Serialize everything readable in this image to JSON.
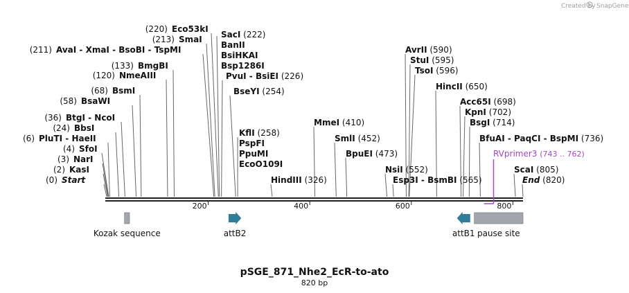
{
  "credit": {
    "created_by": "Created by",
    "brand": "SnapGene"
  },
  "title": "pSGE_871_Nhe2_EcR-to-ato",
  "length_label": "820 bp",
  "axis_ticks": [
    "200",
    "400",
    "600",
    "800"
  ],
  "sites": [
    {
      "pos": 0,
      "text": "(0)",
      "name": "Start",
      "italic": true
    },
    {
      "pos": 2,
      "text": "(2)",
      "name": "KasI"
    },
    {
      "pos": 3,
      "text": "(3)",
      "name": "NarI"
    },
    {
      "pos": 4,
      "text": "(4)",
      "name": "SfoI"
    },
    {
      "pos": 6,
      "text": "(6)",
      "name": "PluTI  -  HaeII"
    },
    {
      "pos": 24,
      "text": "(24)",
      "name": "BbsI"
    },
    {
      "pos": 36,
      "text": "(36)",
      "name": "BtgI  -  NcoI"
    },
    {
      "pos": 58,
      "text": "(58)",
      "name": "BsaWI"
    },
    {
      "pos": 68,
      "text": "(68)",
      "name": "BsmI"
    },
    {
      "pos": 120,
      "text": "(120)",
      "name": "NmeAIII"
    },
    {
      "pos": 133,
      "text": "(133)",
      "name": "BmgBI"
    },
    {
      "pos": 211,
      "text": "(211)",
      "name": "AvaI  -  XmaI  -  BsoBI  -  TspMI"
    },
    {
      "pos": 213,
      "text": "(213)",
      "name": "SmaI"
    },
    {
      "pos": 220,
      "text": "(220)",
      "name": "Eco53kI"
    },
    {
      "pos": 222,
      "text": "(222)",
      "name": "SacI",
      "extra": [
        "BanII",
        "BsiHKAI",
        "Bsp1286I"
      ]
    },
    {
      "pos": 226,
      "text": "(226)",
      "name": "PvuI  -  BsiEI"
    },
    {
      "pos": 254,
      "text": "(254)",
      "name": "BseYI"
    },
    {
      "pos": 258,
      "text": "(258)",
      "name": "KflI",
      "extra": [
        "PspFI",
        "PpuMI",
        "EcoO109I"
      ]
    },
    {
      "pos": 326,
      "text": "(326)",
      "name": "HindIII"
    },
    {
      "pos": 410,
      "text": "(410)",
      "name": "MmeI"
    },
    {
      "pos": 452,
      "text": "(452)",
      "name": "SmlI"
    },
    {
      "pos": 473,
      "text": "(473)",
      "name": "BpuEI"
    },
    {
      "pos": 552,
      "text": "(552)",
      "name": "NsiI"
    },
    {
      "pos": 565,
      "text": "(565)",
      "name": "Esp3I  -  BsmBI"
    },
    {
      "pos": 590,
      "text": "(590)",
      "name": "AvrII"
    },
    {
      "pos": 595,
      "text": "(595)",
      "name": "StuI"
    },
    {
      "pos": 596,
      "text": "(596)",
      "name": "TsoI"
    },
    {
      "pos": 650,
      "text": "(650)",
      "name": "HincII"
    },
    {
      "pos": 698,
      "text": "(698)",
      "name": "Acc65I"
    },
    {
      "pos": 702,
      "text": "(702)",
      "name": "KpnI"
    },
    {
      "pos": 714,
      "text": "(714)",
      "name": "BsgI"
    },
    {
      "pos": 736,
      "text": "(736)",
      "name": "BfuAI  -  PaqCI  -  BspMI"
    },
    {
      "pos": 805,
      "text": "(805)",
      "name": "ScaI"
    },
    {
      "pos": 820,
      "text": "(820)",
      "name": "End",
      "italic": true
    }
  ],
  "primer": {
    "name": "RVprimer3",
    "range": "(743 .. 762)",
    "start": 743,
    "end": 762,
    "color": "#a347c9"
  },
  "features": [
    {
      "name": "Kozak sequence",
      "start": 35,
      "end": 45,
      "kind": "box",
      "color": "#a3a7ad"
    },
    {
      "name": "attB2",
      "start": 240,
      "end": 265,
      "kind": "arrow-right",
      "color": "#2f7d96"
    },
    {
      "name": "attB1",
      "start": 690,
      "end": 716,
      "kind": "arrow-left",
      "color": "#2f7d96"
    },
    {
      "name": "pause site",
      "start": 724,
      "end": 820,
      "kind": "box",
      "color": "#a3a7ad"
    }
  ],
  "colors": {
    "line": "#1f1f1f",
    "leader": "#666666",
    "feature_teal": "#2f7d96",
    "feature_gray": "#a3a7ad",
    "primer": "#a347c9"
  }
}
